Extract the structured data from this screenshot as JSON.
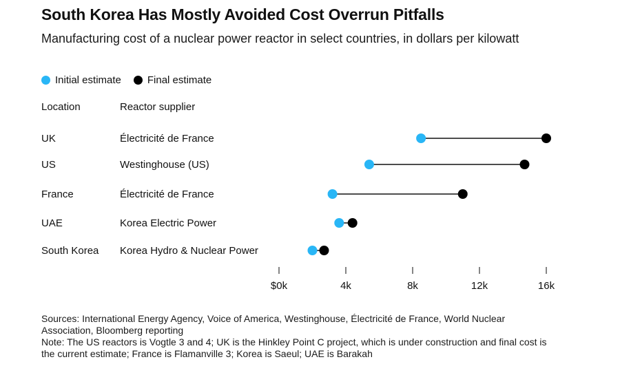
{
  "chart_data": {
    "type": "dumbbell",
    "title": "South Korea Has Mostly Avoided Cost Overrun Pitfalls",
    "subtitle": "Manufacturing cost of a nuclear power reactor in select countries, in dollars per kilowatt",
    "legend": [
      {
        "name": "Initial estimate",
        "color": "#29B6F6"
      },
      {
        "name": "Final estimate",
        "color": "#000000"
      }
    ],
    "legend_position": "top-left",
    "columns": {
      "location": "Location",
      "supplier": "Reactor supplier"
    },
    "rows": [
      {
        "location": "UK",
        "supplier": "Électricité de France",
        "initial": 8500,
        "final": 16000
      },
      {
        "location": "US",
        "supplier": "Westinghouse (US)",
        "initial": 5400,
        "final": 14700
      },
      {
        "location": "France",
        "supplier": "Électricité de France",
        "initial": 3200,
        "final": 11000
      },
      {
        "location": "UAE",
        "supplier": "Korea Electric Power",
        "initial": 3600,
        "final": 4400
      },
      {
        "location": "South Korea",
        "supplier": "Korea Hydro & Nuclear Power",
        "initial": 2000,
        "final": 2700
      }
    ],
    "xlim": [
      0,
      16000
    ],
    "x_ticks": [
      0,
      4000,
      8000,
      12000,
      16000
    ],
    "x_tick_labels": [
      "$0k",
      "4k",
      "8k",
      "12k",
      "16k"
    ],
    "grid": false
  },
  "footer": {
    "sources": "Sources: International Energy Agency, Voice of America, Westinghouse, Électricité de France, World Nuclear Association, Bloomberg reporting",
    "note": "Note: The US reactors is Vogtle 3 and 4; UK is the Hinkley Point C project, which is under construction and final cost is the current estimate; France is Flamanville 3; Korea is Saeul; UAE is Barakah"
  }
}
